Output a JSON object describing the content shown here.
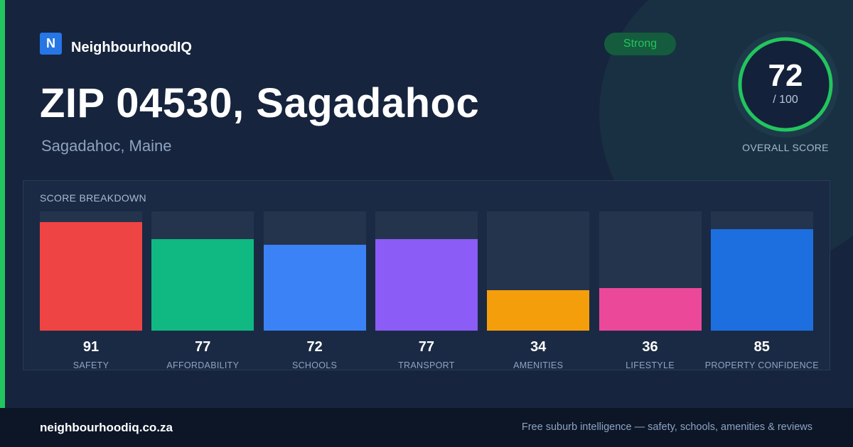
{
  "brand": {
    "logo_letter": "N",
    "name": "NeighbourhoodIQ"
  },
  "header": {
    "title": "ZIP 04530, Sagadahoc",
    "subtitle": "Sagadahoc, Maine"
  },
  "badge": {
    "label": "Strong"
  },
  "overall": {
    "score": "72",
    "max_label": "/ 100",
    "label": "OVERALL SCORE",
    "fraction": 0.72,
    "ring_color": "#22c55e"
  },
  "breakdown": {
    "title": "SCORE BREAKDOWN",
    "max": 100,
    "items": [
      {
        "label": "SAFETY",
        "value": "91",
        "color": "#ef4444"
      },
      {
        "label": "AFFORDABILITY",
        "value": "77",
        "color": "#10b981"
      },
      {
        "label": "SCHOOLS",
        "value": "72",
        "color": "#3b82f6"
      },
      {
        "label": "TRANSPORT",
        "value": "77",
        "color": "#8b5cf6"
      },
      {
        "label": "AMENITIES",
        "value": "34",
        "color": "#f59e0b"
      },
      {
        "label": "LIFESTYLE",
        "value": "36",
        "color": "#ec4899"
      },
      {
        "label": "PROPERTY CONFIDENCE",
        "value": "85",
        "color": "#1d6fe0"
      }
    ]
  },
  "footer": {
    "url": "neighbourhoodiq.co.za",
    "tagline": "Free suburb intelligence — safety, schools, amenities & reviews"
  },
  "colors": {
    "accent": "#22c55e",
    "background": "#16243d"
  }
}
